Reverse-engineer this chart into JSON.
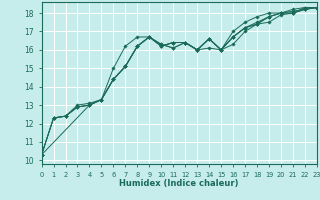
{
  "xlabel": "Humidex (Indice chaleur)",
  "bg_color": "#c6ecec",
  "grid_color": "#ffffff",
  "line_color": "#1a6b5a",
  "xlim": [
    0,
    23
  ],
  "ylim": [
    9.8,
    18.6
  ],
  "xticks": [
    0,
    1,
    2,
    3,
    4,
    5,
    6,
    7,
    8,
    9,
    10,
    11,
    12,
    13,
    14,
    15,
    16,
    17,
    18,
    19,
    20,
    21,
    22,
    23
  ],
  "yticks": [
    10,
    11,
    12,
    13,
    14,
    15,
    16,
    17,
    18
  ],
  "curves": [
    {
      "x": [
        0,
        1,
        2,
        3,
        4,
        5,
        6,
        7,
        8,
        9,
        10,
        11,
        12,
        13,
        14,
        15,
        16,
        17,
        18,
        19,
        20,
        21,
        22,
        23
      ],
      "y": [
        10.3,
        12.3,
        12.4,
        13.0,
        13.1,
        13.3,
        14.4,
        15.1,
        16.2,
        16.7,
        16.3,
        16.1,
        16.4,
        16.0,
        16.6,
        16.0,
        16.7,
        17.2,
        17.5,
        17.8,
        18.0,
        18.1,
        18.2,
        18.3
      ]
    },
    {
      "x": [
        0,
        1,
        2,
        3,
        4,
        5,
        6,
        7,
        8,
        9,
        10,
        11,
        12,
        13,
        14,
        15,
        16,
        17,
        18,
        19,
        20,
        21,
        22,
        23
      ],
      "y": [
        10.3,
        12.3,
        12.4,
        12.9,
        13.0,
        13.3,
        14.4,
        15.1,
        16.2,
        16.7,
        16.2,
        16.4,
        16.4,
        16.0,
        16.1,
        16.0,
        16.3,
        17.0,
        17.4,
        17.5,
        17.9,
        18.0,
        18.3,
        18.3
      ]
    },
    {
      "x": [
        1,
        2,
        3,
        4,
        5,
        6,
        7,
        8,
        9,
        10,
        11,
        12,
        13,
        14,
        15,
        16,
        17,
        18,
        19,
        20,
        21,
        22,
        23
      ],
      "y": [
        12.3,
        12.4,
        12.9,
        13.0,
        13.3,
        14.4,
        15.1,
        16.2,
        16.7,
        16.3,
        16.1,
        16.4,
        16.0,
        16.6,
        16.0,
        17.0,
        17.5,
        17.8,
        18.0,
        18.0,
        18.2,
        18.3,
        18.3
      ]
    },
    {
      "x": [
        0,
        4,
        5,
        6,
        7,
        8,
        9,
        10,
        11,
        12,
        13,
        14,
        15,
        16,
        17,
        18,
        19,
        20,
        21,
        22,
        23
      ],
      "y": [
        10.3,
        13.0,
        13.3,
        14.4,
        15.1,
        16.2,
        16.7,
        16.2,
        16.4,
        16.4,
        16.0,
        16.6,
        16.0,
        16.7,
        17.2,
        17.4,
        17.8,
        18.0,
        18.0,
        18.2,
        18.3
      ]
    },
    {
      "x": [
        0,
        1,
        2,
        3,
        4,
        5,
        6,
        7,
        8,
        9,
        10,
        11,
        12,
        13,
        14,
        15,
        16,
        17,
        18,
        19,
        20,
        21,
        22,
        23
      ],
      "y": [
        10.3,
        12.3,
        12.4,
        12.9,
        13.0,
        13.3,
        15.0,
        16.2,
        16.7,
        16.7,
        16.2,
        16.4,
        16.4,
        16.0,
        16.6,
        16.0,
        16.7,
        17.2,
        17.4,
        17.8,
        18.0,
        18.0,
        18.2,
        18.3
      ]
    }
  ]
}
